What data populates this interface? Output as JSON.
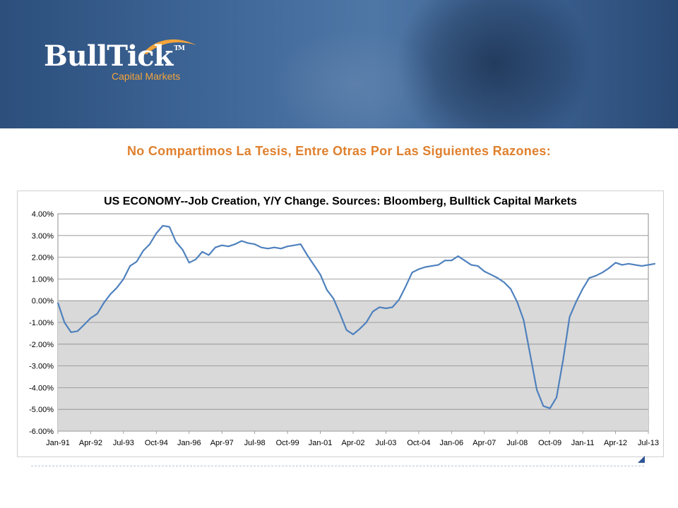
{
  "brand": {
    "name": "BullTick",
    "tm": "TM",
    "subtitle": "Capital Markets",
    "accent_color": "#f3a43a"
  },
  "slide": {
    "title": "No Compartimos La Tesis, Entre Otras Por Las Siguientes Razones:"
  },
  "chart_data": {
    "type": "line",
    "title": "US ECONOMY--Job Creation, Y/Y Change. Sources: Bloomberg, Bulltick Capital Markets",
    "xlabel": "",
    "ylabel": "",
    "ylim": [
      -0.06,
      0.04
    ],
    "y_ticks": [
      0.04,
      0.03,
      0.02,
      0.01,
      0.0,
      -0.01,
      -0.02,
      -0.03,
      -0.04,
      -0.05,
      -0.06
    ],
    "y_tick_labels": [
      "4.00%",
      "3.00%",
      "2.00%",
      "1.00%",
      "0.00%",
      "-1.00%",
      "-2.00%",
      "-3.00%",
      "-4.00%",
      "-5.00%",
      "-6.00%"
    ],
    "x_tick_labels": [
      "Jan-91",
      "Apr-92",
      "Jul-93",
      "Oct-94",
      "Jan-96",
      "Apr-97",
      "Jul-98",
      "Oct-99",
      "Jan-01",
      "Apr-02",
      "Jul-03",
      "Oct-04",
      "Jan-06",
      "Apr-07",
      "Jul-08",
      "Oct-09",
      "Jan-11",
      "Apr-12",
      "Jul-13"
    ],
    "x_tick_dates": [
      "1991-01",
      "1992-04",
      "1993-07",
      "1994-10",
      "1996-01",
      "1997-04",
      "1998-07",
      "1999-10",
      "2001-01",
      "2002-04",
      "2003-07",
      "2004-10",
      "2006-01",
      "2007-04",
      "2008-07",
      "2009-10",
      "2011-01",
      "2012-04",
      "2013-07"
    ],
    "grid": true,
    "legend": "none",
    "negative_fill_color": "#d9d9d9",
    "line_color": "#4f81bd",
    "series": [
      {
        "points": [
          [
            "1991-01",
            -0.001
          ],
          [
            "1991-04",
            -0.01
          ],
          [
            "1991-07",
            -0.0145
          ],
          [
            "1991-10",
            -0.014
          ],
          [
            "1992-01",
            -0.011
          ],
          [
            "1992-04",
            -0.008
          ],
          [
            "1992-07",
            -0.006
          ],
          [
            "1992-10",
            -0.001
          ],
          [
            "1993-01",
            0.003
          ],
          [
            "1993-04",
            0.006
          ],
          [
            "1993-07",
            0.01
          ],
          [
            "1993-10",
            0.016
          ],
          [
            "1994-01",
            0.018
          ],
          [
            "1994-04",
            0.023
          ],
          [
            "1994-07",
            0.026
          ],
          [
            "1994-10",
            0.031
          ],
          [
            "1995-01",
            0.0345
          ],
          [
            "1995-04",
            0.034
          ],
          [
            "1995-07",
            0.027
          ],
          [
            "1995-10",
            0.0235
          ],
          [
            "1996-01",
            0.0175
          ],
          [
            "1996-04",
            0.019
          ],
          [
            "1996-07",
            0.0225
          ],
          [
            "1996-10",
            0.021
          ],
          [
            "1997-01",
            0.0245
          ],
          [
            "1997-04",
            0.0255
          ],
          [
            "1997-07",
            0.025
          ],
          [
            "1997-10",
            0.026
          ],
          [
            "1998-01",
            0.0275
          ],
          [
            "1998-04",
            0.0265
          ],
          [
            "1998-07",
            0.026
          ],
          [
            "1998-10",
            0.0245
          ],
          [
            "1999-01",
            0.024
          ],
          [
            "1999-04",
            0.0245
          ],
          [
            "1999-07",
            0.024
          ],
          [
            "1999-10",
            0.025
          ],
          [
            "2000-01",
            0.0255
          ],
          [
            "2000-04",
            0.026
          ],
          [
            "2000-07",
            0.021
          ],
          [
            "2000-10",
            0.0165
          ],
          [
            "2001-01",
            0.012
          ],
          [
            "2001-04",
            0.005
          ],
          [
            "2001-07",
            0.001
          ],
          [
            "2001-10",
            -0.006
          ],
          [
            "2002-01",
            -0.0135
          ],
          [
            "2002-04",
            -0.0155
          ],
          [
            "2002-07",
            -0.013
          ],
          [
            "2002-10",
            -0.01
          ],
          [
            "2003-01",
            -0.005
          ],
          [
            "2003-04",
            -0.003
          ],
          [
            "2003-07",
            -0.0035
          ],
          [
            "2003-10",
            -0.003
          ],
          [
            "2004-01",
            0.0005
          ],
          [
            "2004-04",
            0.0065
          ],
          [
            "2004-07",
            0.013
          ],
          [
            "2004-10",
            0.0145
          ],
          [
            "2005-01",
            0.0155
          ],
          [
            "2005-04",
            0.016
          ],
          [
            "2005-07",
            0.0165
          ],
          [
            "2005-10",
            0.0185
          ],
          [
            "2006-01",
            0.0185
          ],
          [
            "2006-04",
            0.0205
          ],
          [
            "2006-07",
            0.0185
          ],
          [
            "2006-10",
            0.0165
          ],
          [
            "2007-01",
            0.016
          ],
          [
            "2007-04",
            0.0135
          ],
          [
            "2007-07",
            0.012
          ],
          [
            "2007-10",
            0.0105
          ],
          [
            "2008-01",
            0.0085
          ],
          [
            "2008-04",
            0.0055
          ],
          [
            "2008-07",
            -0.0005
          ],
          [
            "2008-10",
            -0.009
          ],
          [
            "2009-01",
            -0.025
          ],
          [
            "2009-04",
            -0.041
          ],
          [
            "2009-07",
            -0.0485
          ],
          [
            "2009-10",
            -0.0495
          ],
          [
            "2010-01",
            -0.0445
          ],
          [
            "2010-04",
            -0.0275
          ],
          [
            "2010-07",
            -0.0075
          ],
          [
            "2010-10",
            -0.0005
          ],
          [
            "2011-01",
            0.0055
          ],
          [
            "2011-04",
            0.0105
          ],
          [
            "2011-07",
            0.0115
          ],
          [
            "2011-10",
            0.013
          ],
          [
            "2012-01",
            0.015
          ],
          [
            "2012-04",
            0.0175
          ],
          [
            "2012-07",
            0.0165
          ],
          [
            "2012-10",
            0.017
          ],
          [
            "2013-01",
            0.0165
          ],
          [
            "2013-04",
            0.016
          ],
          [
            "2013-07",
            0.0165
          ],
          [
            "2013-10",
            0.017
          ]
        ]
      }
    ]
  }
}
